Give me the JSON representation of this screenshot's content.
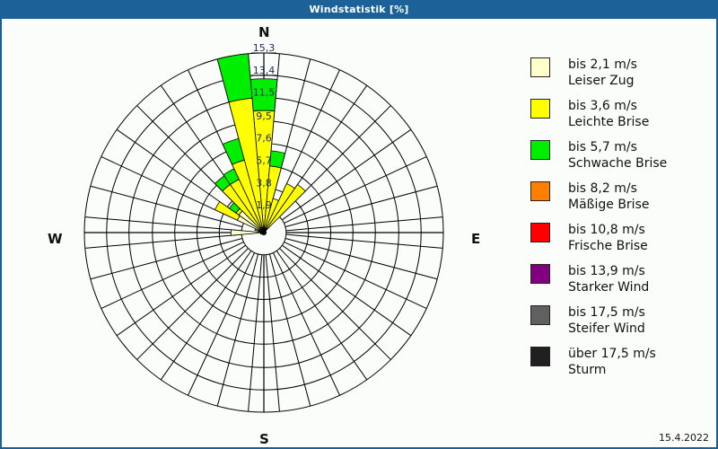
{
  "window": {
    "title": "Windstatistik [%]"
  },
  "compass": {
    "n": "N",
    "e": "E",
    "s": "S",
    "w": "W"
  },
  "footer": {
    "date": "15.4.2022"
  },
  "legend": [
    {
      "range": "bis 2,1 m/s",
      "name": "Leiser Zug",
      "color": "#ffffcc"
    },
    {
      "range": "bis 3,6 m/s",
      "name": "Leichte Brise",
      "color": "#ffff00"
    },
    {
      "range": "bis 5,7 m/s",
      "name": "Schwache Brise",
      "color": "#00ee00"
    },
    {
      "range": "bis 8,2 m/s",
      "name": "Mäßige Brise",
      "color": "#ff8000"
    },
    {
      "range": "bis 10,8 m/s",
      "name": "Frische Brise",
      "color": "#ff0000"
    },
    {
      "range": "bis 13,9 m/s",
      "name": "Starker Wind",
      "color": "#800080"
    },
    {
      "range": "bis 17,5 m/s",
      "name": "Steifer Wind",
      "color": "#606060"
    },
    {
      "range": "über 17,5 m/s",
      "name": "Sturm",
      "color": "#202020"
    }
  ],
  "chart_data": {
    "type": "polar-bar",
    "title": "Windstatistik [%]",
    "unit": "%",
    "sector_width_deg": 10,
    "ring_labels": [
      "1,9",
      "3,8",
      "5,7",
      "7,6",
      "9,5",
      "11,5",
      "13,4",
      "15,3"
    ],
    "ring_values": [
      1.9,
      3.8,
      5.7,
      7.6,
      9.5,
      11.5,
      13.4,
      15.3
    ],
    "rmax": 15.3,
    "series": [
      {
        "name": "bis 2,1 m/s (Leiser Zug)",
        "color": "#ffffcc"
      },
      {
        "name": "bis 3,6 m/s (Leichte Brise)",
        "color": "#ffff00"
      },
      {
        "name": "bis 5,7 m/s (Schwache Brise)",
        "color": "#00ee00"
      },
      {
        "name": "bis 8,2 m/s (Mäßige Brise)",
        "color": "#ff8000"
      },
      {
        "name": "bis 10,8 m/s (Frische Brise)",
        "color": "#ff0000"
      },
      {
        "name": "bis 13,9 m/s (Starker Wind)",
        "color": "#800080"
      },
      {
        "name": "bis 17,5 m/s (Steifer Wind)",
        "color": "#606060"
      },
      {
        "name": "über 17,5 m/s (Sturm)",
        "color": "#202020"
      }
    ],
    "sectors": [
      {
        "dir": 0,
        "values": [
          0.3,
          10.1,
          2.7,
          0,
          0,
          0,
          0,
          0
        ]
      },
      {
        "dir": 10,
        "values": [
          0.3,
          5.4,
          1.3,
          0,
          0,
          0,
          0,
          0
        ]
      },
      {
        "dir": 20,
        "values": [
          0.3,
          2.7,
          0,
          0,
          0,
          0,
          0,
          0
        ]
      },
      {
        "dir": 30,
        "values": [
          0.4,
          4.2,
          0,
          0,
          0,
          0,
          0,
          0
        ]
      },
      {
        "dir": 40,
        "values": [
          0.4,
          4.6,
          0,
          0,
          0,
          0,
          0,
          0
        ]
      },
      {
        "dir": 50,
        "values": [
          0.2,
          0,
          0,
          0,
          0,
          0,
          0,
          0
        ]
      },
      {
        "dir": 60,
        "values": [
          0.2,
          0,
          0,
          0,
          0,
          0,
          0,
          0
        ]
      },
      {
        "dir": 70,
        "values": [
          0.1,
          0,
          0,
          0,
          0,
          0,
          0,
          0
        ]
      },
      {
        "dir": 80,
        "values": [
          0.1,
          0,
          0,
          0,
          0,
          0,
          0,
          0
        ]
      },
      {
        "dir": 90,
        "values": [
          0.1,
          0,
          0,
          0,
          0,
          0,
          0,
          0
        ]
      },
      {
        "dir": 100,
        "values": [
          0.1,
          0,
          0,
          0,
          0,
          0,
          0,
          0
        ]
      },
      {
        "dir": 110,
        "values": [
          0,
          0,
          0,
          0,
          0,
          0,
          0,
          0
        ]
      },
      {
        "dir": 120,
        "values": [
          0,
          0,
          0,
          0,
          0,
          0,
          0,
          0
        ]
      },
      {
        "dir": 130,
        "values": [
          0,
          0,
          0,
          0,
          0,
          0,
          0,
          0
        ]
      },
      {
        "dir": 140,
        "values": [
          0,
          0,
          0,
          0,
          0,
          0,
          0,
          0
        ]
      },
      {
        "dir": 150,
        "values": [
          0,
          0,
          0,
          0,
          0,
          0,
          0,
          0
        ]
      },
      {
        "dir": 160,
        "values": [
          0,
          0,
          0,
          0,
          0,
          0,
          0,
          0
        ]
      },
      {
        "dir": 170,
        "values": [
          0,
          0,
          0,
          0,
          0,
          0,
          0,
          0
        ]
      },
      {
        "dir": 180,
        "values": [
          0,
          0,
          0,
          0,
          0,
          0,
          0,
          0
        ]
      },
      {
        "dir": 190,
        "values": [
          0,
          0,
          0,
          0,
          0,
          0,
          0,
          0
        ]
      },
      {
        "dir": 200,
        "values": [
          0,
          0,
          0,
          0,
          0,
          0,
          0,
          0
        ]
      },
      {
        "dir": 210,
        "values": [
          0,
          0,
          0,
          0,
          0,
          0,
          0,
          0
        ]
      },
      {
        "dir": 220,
        "values": [
          0.1,
          0,
          0,
          0,
          0,
          0,
          0,
          0
        ]
      },
      {
        "dir": 230,
        "values": [
          0.1,
          0,
          0,
          0,
          0,
          0,
          0,
          0
        ]
      },
      {
        "dir": 240,
        "values": [
          0.2,
          0,
          0,
          0,
          0,
          0,
          0,
          0
        ]
      },
      {
        "dir": 250,
        "values": [
          0.3,
          0,
          0,
          0,
          0,
          0,
          0,
          0
        ]
      },
      {
        "dir": 260,
        "values": [
          0.3,
          0,
          0,
          0,
          0,
          0,
          0,
          0
        ]
      },
      {
        "dir": 270,
        "values": [
          2.8,
          0,
          0,
          0,
          0,
          0,
          0,
          0
        ]
      },
      {
        "dir": 280,
        "values": [
          0.4,
          0,
          0,
          0,
          0,
          0,
          0,
          0
        ]
      },
      {
        "dir": 290,
        "values": [
          0.5,
          0.3,
          0,
          0,
          0,
          0,
          0,
          0
        ]
      },
      {
        "dir": 300,
        "values": [
          2.5,
          2.1,
          0,
          0,
          0,
          0,
          0,
          0
        ]
      },
      {
        "dir": 310,
        "values": [
          2.6,
          0.3,
          0.7,
          0,
          0,
          0,
          0,
          0
        ]
      },
      {
        "dir": 320,
        "values": [
          0.5,
          4.5,
          0.9,
          0,
          0,
          0,
          0,
          0
        ]
      },
      {
        "dir": 330,
        "values": [
          0.5,
          4.5,
          1.0,
          0,
          0,
          0,
          0,
          0
        ]
      },
      {
        "dir": 340,
        "values": [
          0.5,
          5.9,
          1.9,
          0,
          0,
          0,
          0,
          0
        ]
      },
      {
        "dir": 350,
        "values": [
          0.4,
          11.1,
          3.8,
          0,
          0,
          0,
          0,
          0
        ]
      }
    ]
  }
}
